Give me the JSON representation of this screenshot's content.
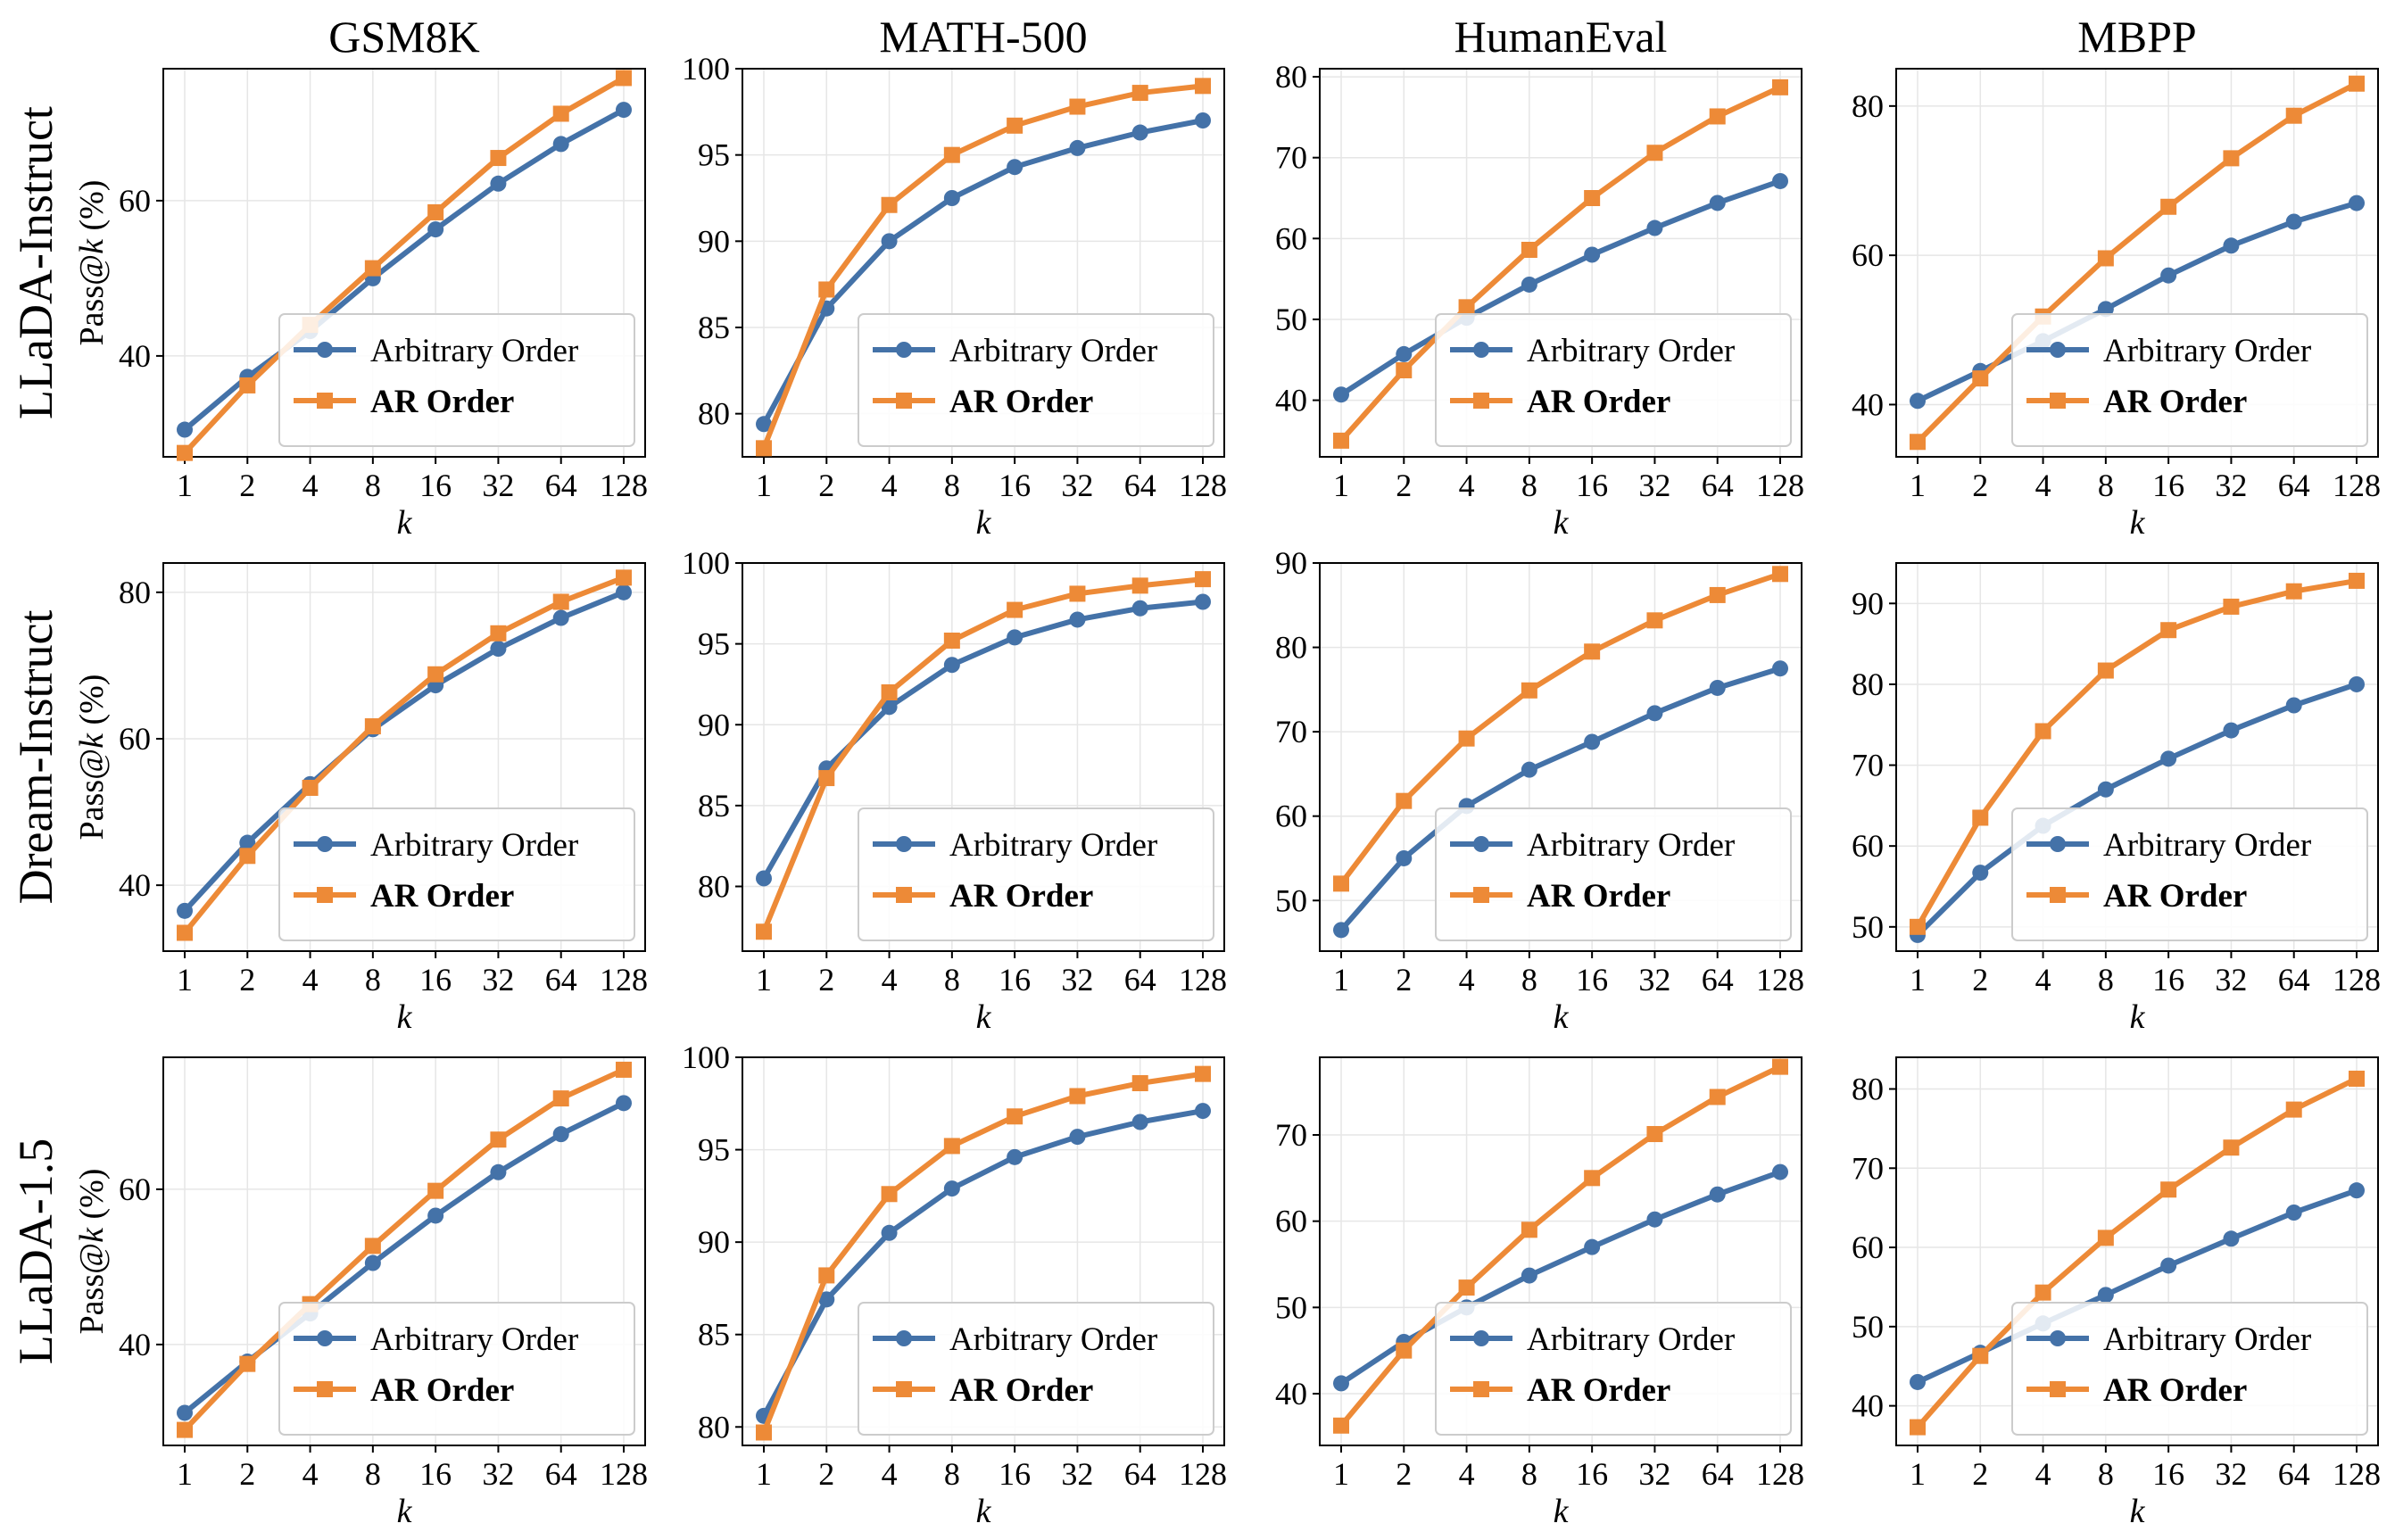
{
  "figure": {
    "columns": [
      "GSM8K",
      "MATH-500",
      "HumanEval",
      "MBPP"
    ],
    "rows": [
      "LLaDA-Instruct",
      "Dream-Instruct",
      "LLaDA-1.5"
    ],
    "ylabel_prefix": "Pass@",
    "ylabel_k": "k",
    "ylabel_suffix": " (%)",
    "xlabel": "k",
    "legend": [
      "Arbitrary Order",
      "AR Order"
    ],
    "colors": {
      "arbitrary": "#4472a8",
      "ar": "#ed8a37"
    }
  },
  "chart_data": [
    {
      "type": "line",
      "row": "LLaDA-Instruct",
      "title": "GSM8K",
      "xlabel": "k",
      "ylabel": "Pass@k (%)",
      "x": [
        1,
        2,
        4,
        8,
        16,
        32,
        64,
        128
      ],
      "ylim": [
        27,
        77
      ],
      "yticks": [
        40,
        60
      ],
      "series": [
        {
          "name": "Arbitrary Order",
          "values": [
            30.5,
            37.3,
            43.2,
            50.0,
            56.3,
            62.2,
            67.3,
            71.7
          ]
        },
        {
          "name": "AR Order",
          "values": [
            27.5,
            36.2,
            44.0,
            51.3,
            58.5,
            65.5,
            71.2,
            75.8
          ]
        }
      ]
    },
    {
      "type": "line",
      "row": "LLaDA-Instruct",
      "title": "MATH-500",
      "xlabel": "k",
      "ylabel": "Pass@k (%)",
      "x": [
        1,
        2,
        4,
        8,
        16,
        32,
        64,
        128
      ],
      "ylim": [
        77.5,
        100
      ],
      "yticks": [
        80,
        85,
        90,
        95,
        100
      ],
      "series": [
        {
          "name": "Arbitrary Order",
          "values": [
            79.4,
            86.1,
            90.0,
            92.5,
            94.3,
            95.4,
            96.3,
            97.0
          ]
        },
        {
          "name": "AR Order",
          "values": [
            78.0,
            87.2,
            92.1,
            95.0,
            96.7,
            97.8,
            98.6,
            99.0
          ]
        }
      ]
    },
    {
      "type": "line",
      "row": "LLaDA-Instruct",
      "title": "HumanEval",
      "xlabel": "k",
      "ylabel": "Pass@k (%)",
      "x": [
        1,
        2,
        4,
        8,
        16,
        32,
        64,
        128
      ],
      "ylim": [
        33,
        81
      ],
      "yticks": [
        40,
        50,
        60,
        70,
        80
      ],
      "series": [
        {
          "name": "Arbitrary Order",
          "values": [
            40.7,
            45.7,
            50.2,
            54.3,
            58.0,
            61.3,
            64.4,
            67.1
          ]
        },
        {
          "name": "AR Order",
          "values": [
            35.0,
            43.7,
            51.5,
            58.6,
            65.0,
            70.6,
            75.1,
            78.7
          ]
        }
      ]
    },
    {
      "type": "line",
      "row": "LLaDA-Instruct",
      "title": "MBPP",
      "xlabel": "k",
      "ylabel": "Pass@k (%)",
      "x": [
        1,
        2,
        4,
        8,
        16,
        32,
        64,
        128
      ],
      "ylim": [
        33,
        85
      ],
      "yticks": [
        40,
        60,
        80
      ],
      "series": [
        {
          "name": "Arbitrary Order",
          "values": [
            40.5,
            44.5,
            48.5,
            52.8,
            57.3,
            61.3,
            64.5,
            67.0
          ]
        },
        {
          "name": "AR Order",
          "values": [
            35.0,
            43.5,
            51.8,
            59.6,
            66.5,
            73.0,
            78.7,
            83.0
          ]
        }
      ]
    },
    {
      "type": "line",
      "row": "Dream-Instruct",
      "title": "GSM8K",
      "xlabel": "k",
      "ylabel": "Pass@k (%)",
      "x": [
        1,
        2,
        4,
        8,
        16,
        32,
        64,
        128
      ],
      "ylim": [
        31,
        84
      ],
      "yticks": [
        40,
        60,
        80
      ],
      "series": [
        {
          "name": "Arbitrary Order",
          "values": [
            36.5,
            45.8,
            53.8,
            61.3,
            67.3,
            72.3,
            76.5,
            80.0
          ]
        },
        {
          "name": "AR Order",
          "values": [
            33.5,
            44.0,
            53.3,
            61.7,
            68.8,
            74.4,
            78.7,
            82.0
          ]
        }
      ]
    },
    {
      "type": "line",
      "row": "Dream-Instruct",
      "title": "MATH-500",
      "xlabel": "k",
      "ylabel": "Pass@k (%)",
      "x": [
        1,
        2,
        4,
        8,
        16,
        32,
        64,
        128
      ],
      "ylim": [
        76,
        100
      ],
      "yticks": [
        80,
        85,
        90,
        95,
        100
      ],
      "series": [
        {
          "name": "Arbitrary Order",
          "values": [
            80.5,
            87.3,
            91.1,
            93.7,
            95.4,
            96.5,
            97.2,
            97.6
          ]
        },
        {
          "name": "AR Order",
          "values": [
            77.2,
            86.7,
            92.0,
            95.2,
            97.1,
            98.1,
            98.6,
            99.0
          ]
        }
      ]
    },
    {
      "type": "line",
      "row": "Dream-Instruct",
      "title": "HumanEval",
      "xlabel": "k",
      "ylabel": "Pass@k (%)",
      "x": [
        1,
        2,
        4,
        8,
        16,
        32,
        64,
        128
      ],
      "ylim": [
        44,
        90
      ],
      "yticks": [
        50,
        60,
        70,
        80,
        90
      ],
      "series": [
        {
          "name": "Arbitrary Order",
          "values": [
            46.5,
            55.0,
            61.2,
            65.5,
            68.8,
            72.2,
            75.2,
            77.5
          ]
        },
        {
          "name": "AR Order",
          "values": [
            52.0,
            61.8,
            69.2,
            74.9,
            79.5,
            83.2,
            86.2,
            88.7
          ]
        }
      ]
    },
    {
      "type": "line",
      "row": "Dream-Instruct",
      "title": "MBPP",
      "xlabel": "k",
      "ylabel": "Pass@k (%)",
      "x": [
        1,
        2,
        4,
        8,
        16,
        32,
        64,
        128
      ],
      "ylim": [
        47,
        95
      ],
      "yticks": [
        50,
        60,
        70,
        80,
        90
      ],
      "series": [
        {
          "name": "Arbitrary Order",
          "values": [
            49.0,
            56.7,
            62.5,
            67.0,
            70.8,
            74.3,
            77.4,
            80.0
          ]
        },
        {
          "name": "AR Order",
          "values": [
            50.0,
            63.5,
            74.2,
            81.7,
            86.7,
            89.6,
            91.5,
            92.8
          ]
        }
      ]
    },
    {
      "type": "line",
      "row": "LLaDA-1.5",
      "title": "GSM8K",
      "xlabel": "k",
      "ylabel": "Pass@k (%)",
      "x": [
        1,
        2,
        4,
        8,
        16,
        32,
        64,
        128
      ],
      "ylim": [
        27,
        77
      ],
      "yticks": [
        40,
        60
      ],
      "series": [
        {
          "name": "Arbitrary Order",
          "values": [
            31.2,
            37.8,
            44.0,
            50.5,
            56.6,
            62.2,
            67.1,
            71.1
          ]
        },
        {
          "name": "AR Order",
          "values": [
            29.0,
            37.5,
            45.2,
            52.7,
            59.8,
            66.4,
            71.7,
            75.4
          ]
        }
      ]
    },
    {
      "type": "line",
      "row": "LLaDA-1.5",
      "title": "MATH-500",
      "xlabel": "k",
      "ylabel": "Pass@k (%)",
      "x": [
        1,
        2,
        4,
        8,
        16,
        32,
        64,
        128
      ],
      "ylim": [
        79,
        100
      ],
      "yticks": [
        80,
        85,
        90,
        95,
        100
      ],
      "series": [
        {
          "name": "Arbitrary Order",
          "values": [
            80.6,
            86.9,
            90.5,
            92.9,
            94.6,
            95.7,
            96.5,
            97.1
          ]
        },
        {
          "name": "AR Order",
          "values": [
            79.7,
            88.2,
            92.6,
            95.2,
            96.8,
            97.9,
            98.6,
            99.1
          ]
        }
      ]
    },
    {
      "type": "line",
      "row": "LLaDA-1.5",
      "title": "HumanEval",
      "xlabel": "k",
      "ylabel": "Pass@k (%)",
      "x": [
        1,
        2,
        4,
        8,
        16,
        32,
        64,
        128
      ],
      "ylim": [
        34,
        79
      ],
      "yticks": [
        40,
        50,
        60,
        70
      ],
      "series": [
        {
          "name": "Arbitrary Order",
          "values": [
            41.2,
            46.0,
            50.0,
            53.7,
            57.0,
            60.2,
            63.1,
            65.7
          ]
        },
        {
          "name": "AR Order",
          "values": [
            36.3,
            45.0,
            52.3,
            59.0,
            65.0,
            70.1,
            74.4,
            77.9
          ]
        }
      ]
    },
    {
      "type": "line",
      "row": "LLaDA-1.5",
      "title": "MBPP",
      "xlabel": "k",
      "ylabel": "Pass@k (%)",
      "x": [
        1,
        2,
        4,
        8,
        16,
        32,
        64,
        128
      ],
      "ylim": [
        35,
        84
      ],
      "yticks": [
        40,
        50,
        60,
        70,
        80
      ],
      "series": [
        {
          "name": "Arbitrary Order",
          "values": [
            43.0,
            46.7,
            50.4,
            54.0,
            57.7,
            61.1,
            64.4,
            67.2
          ]
        },
        {
          "name": "AR Order",
          "values": [
            37.3,
            46.3,
            54.3,
            61.2,
            67.3,
            72.6,
            77.4,
            81.3
          ]
        }
      ]
    }
  ]
}
